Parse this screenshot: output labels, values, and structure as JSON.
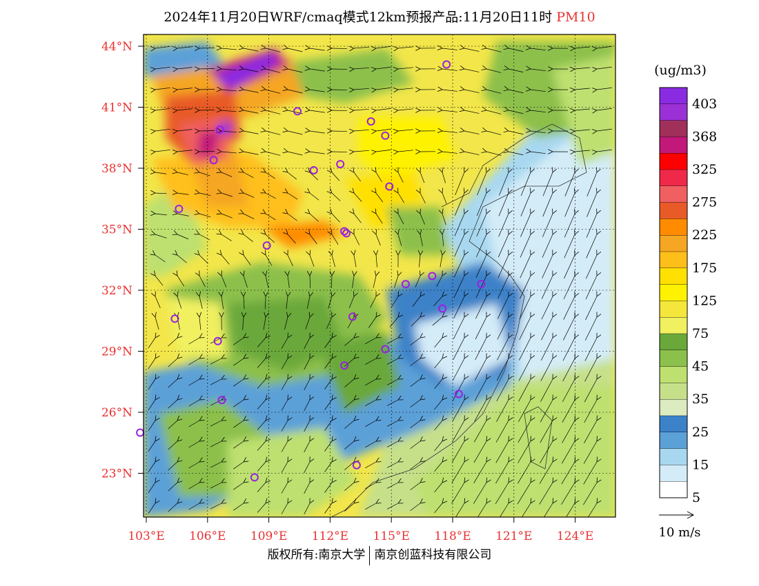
{
  "title": {
    "main": "2024年11月20日WRF/cmaq模式12km预报产品:11月20日11时",
    "pollutant": "PM10",
    "pollutant_color": "#e8312f"
  },
  "axes": {
    "lat_labels": [
      "44°N",
      "41°N",
      "38°N",
      "35°N",
      "32°N",
      "29°N",
      "26°N",
      "23°N"
    ],
    "lat_values": [
      44,
      41,
      38,
      35,
      32,
      29,
      26,
      23
    ],
    "lon_labels": [
      "103°E",
      "106°E",
      "109°E",
      "112°E",
      "115°E",
      "118°E",
      "121°E",
      "124°E"
    ],
    "lon_values": [
      103,
      106,
      109,
      112,
      115,
      118,
      121,
      124
    ],
    "label_color": "#e8312f"
  },
  "legend": {
    "unit": "(ug/m3)",
    "labels": [
      "403",
      "368",
      "325",
      "275",
      "225",
      "175",
      "125",
      "75",
      "45",
      "35",
      "25",
      "15",
      "5"
    ],
    "colors": [
      "#8a2be2",
      "#9b30d6",
      "#a0305a",
      "#c2187a",
      "#ff0000",
      "#f0284a",
      "#f06060",
      "#e85a28",
      "#ff8c00",
      "#f5a623",
      "#ffbf1a",
      "#ffe000",
      "#fff200",
      "#f5e63c",
      "#f0f060",
      "#6aa83a",
      "#8cc04c",
      "#bde070",
      "#c6e08a",
      "#dcebc0",
      "#3c82c8",
      "#5ca0d8",
      "#a8d8f0",
      "#d4ecf8",
      "#ffffff"
    ],
    "wind_scale_label": "10 m/s"
  },
  "cities": [
    {
      "lon": 117.7,
      "lat": 43.1
    },
    {
      "lon": 110.4,
      "lat": 40.8
    },
    {
      "lon": 106.6,
      "lat": 39.9
    },
    {
      "lon": 106.3,
      "lat": 38.4
    },
    {
      "lon": 104.6,
      "lat": 36.0
    },
    {
      "lon": 108.9,
      "lat": 34.2
    },
    {
      "lon": 111.2,
      "lat": 37.9
    },
    {
      "lon": 112.5,
      "lat": 38.2
    },
    {
      "lon": 114.0,
      "lat": 40.3
    },
    {
      "lon": 114.7,
      "lat": 39.6
    },
    {
      "lon": 114.9,
      "lat": 37.1
    },
    {
      "lon": 112.8,
      "lat": 34.8
    },
    {
      "lon": 112.7,
      "lat": 34.9
    },
    {
      "lon": 115.7,
      "lat": 32.3
    },
    {
      "lon": 117.0,
      "lat": 32.7
    },
    {
      "lon": 119.4,
      "lat": 32.3
    },
    {
      "lon": 117.5,
      "lat": 31.1
    },
    {
      "lon": 113.1,
      "lat": 30.7
    },
    {
      "lon": 104.4,
      "lat": 30.6
    },
    {
      "lon": 106.5,
      "lat": 29.5
    },
    {
      "lon": 114.7,
      "lat": 29.1
    },
    {
      "lon": 112.7,
      "lat": 28.3
    },
    {
      "lon": 106.7,
      "lat": 26.6
    },
    {
      "lon": 118.3,
      "lat": 26.9
    },
    {
      "lon": 102.7,
      "lat": 25.0
    },
    {
      "lon": 108.3,
      "lat": 22.8
    },
    {
      "lon": 113.3,
      "lat": 23.4
    }
  ],
  "footer": {
    "left": "版权所有:南京大学",
    "right": "南京创蓝科技有限公司"
  }
}
